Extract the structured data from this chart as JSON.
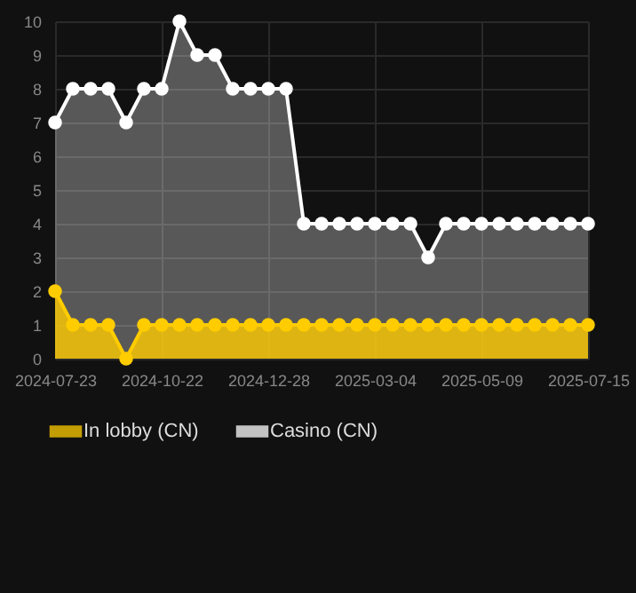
{
  "chart_data": {
    "type": "area",
    "categories": [
      "2024-07-23",
      null,
      null,
      null,
      null,
      null,
      "2024-10-22",
      null,
      null,
      null,
      null,
      null,
      "2024-12-28",
      null,
      null,
      null,
      null,
      null,
      "2025-03-04",
      null,
      null,
      null,
      null,
      null,
      "2025-05-09",
      null,
      null,
      null,
      null,
      null,
      "2025-07-15"
    ],
    "series": [
      {
        "name": "In lobby (CN)",
        "color": "#ffcc00",
        "values": [
          2,
          1,
          1,
          1,
          0,
          1,
          1,
          1,
          1,
          1,
          1,
          1,
          1,
          1,
          1,
          1,
          1,
          1,
          1,
          1,
          1,
          1,
          1,
          1,
          1,
          1,
          1,
          1,
          1,
          1,
          1
        ]
      },
      {
        "name": "Casino (CN)",
        "color": "#ffffff",
        "values": [
          7,
          8,
          8,
          8,
          7,
          8,
          8,
          10,
          9,
          9,
          8,
          8,
          8,
          8,
          4,
          4,
          4,
          4,
          4,
          4,
          4,
          3,
          4,
          4,
          4,
          4,
          4,
          4,
          4,
          4,
          4
        ]
      }
    ],
    "ylim": [
      0,
      10
    ],
    "yticks": [
      0,
      1,
      2,
      3,
      4,
      5,
      6,
      7,
      8,
      9,
      10
    ],
    "grid": true,
    "legend": "bottom",
    "marker": "circle"
  }
}
